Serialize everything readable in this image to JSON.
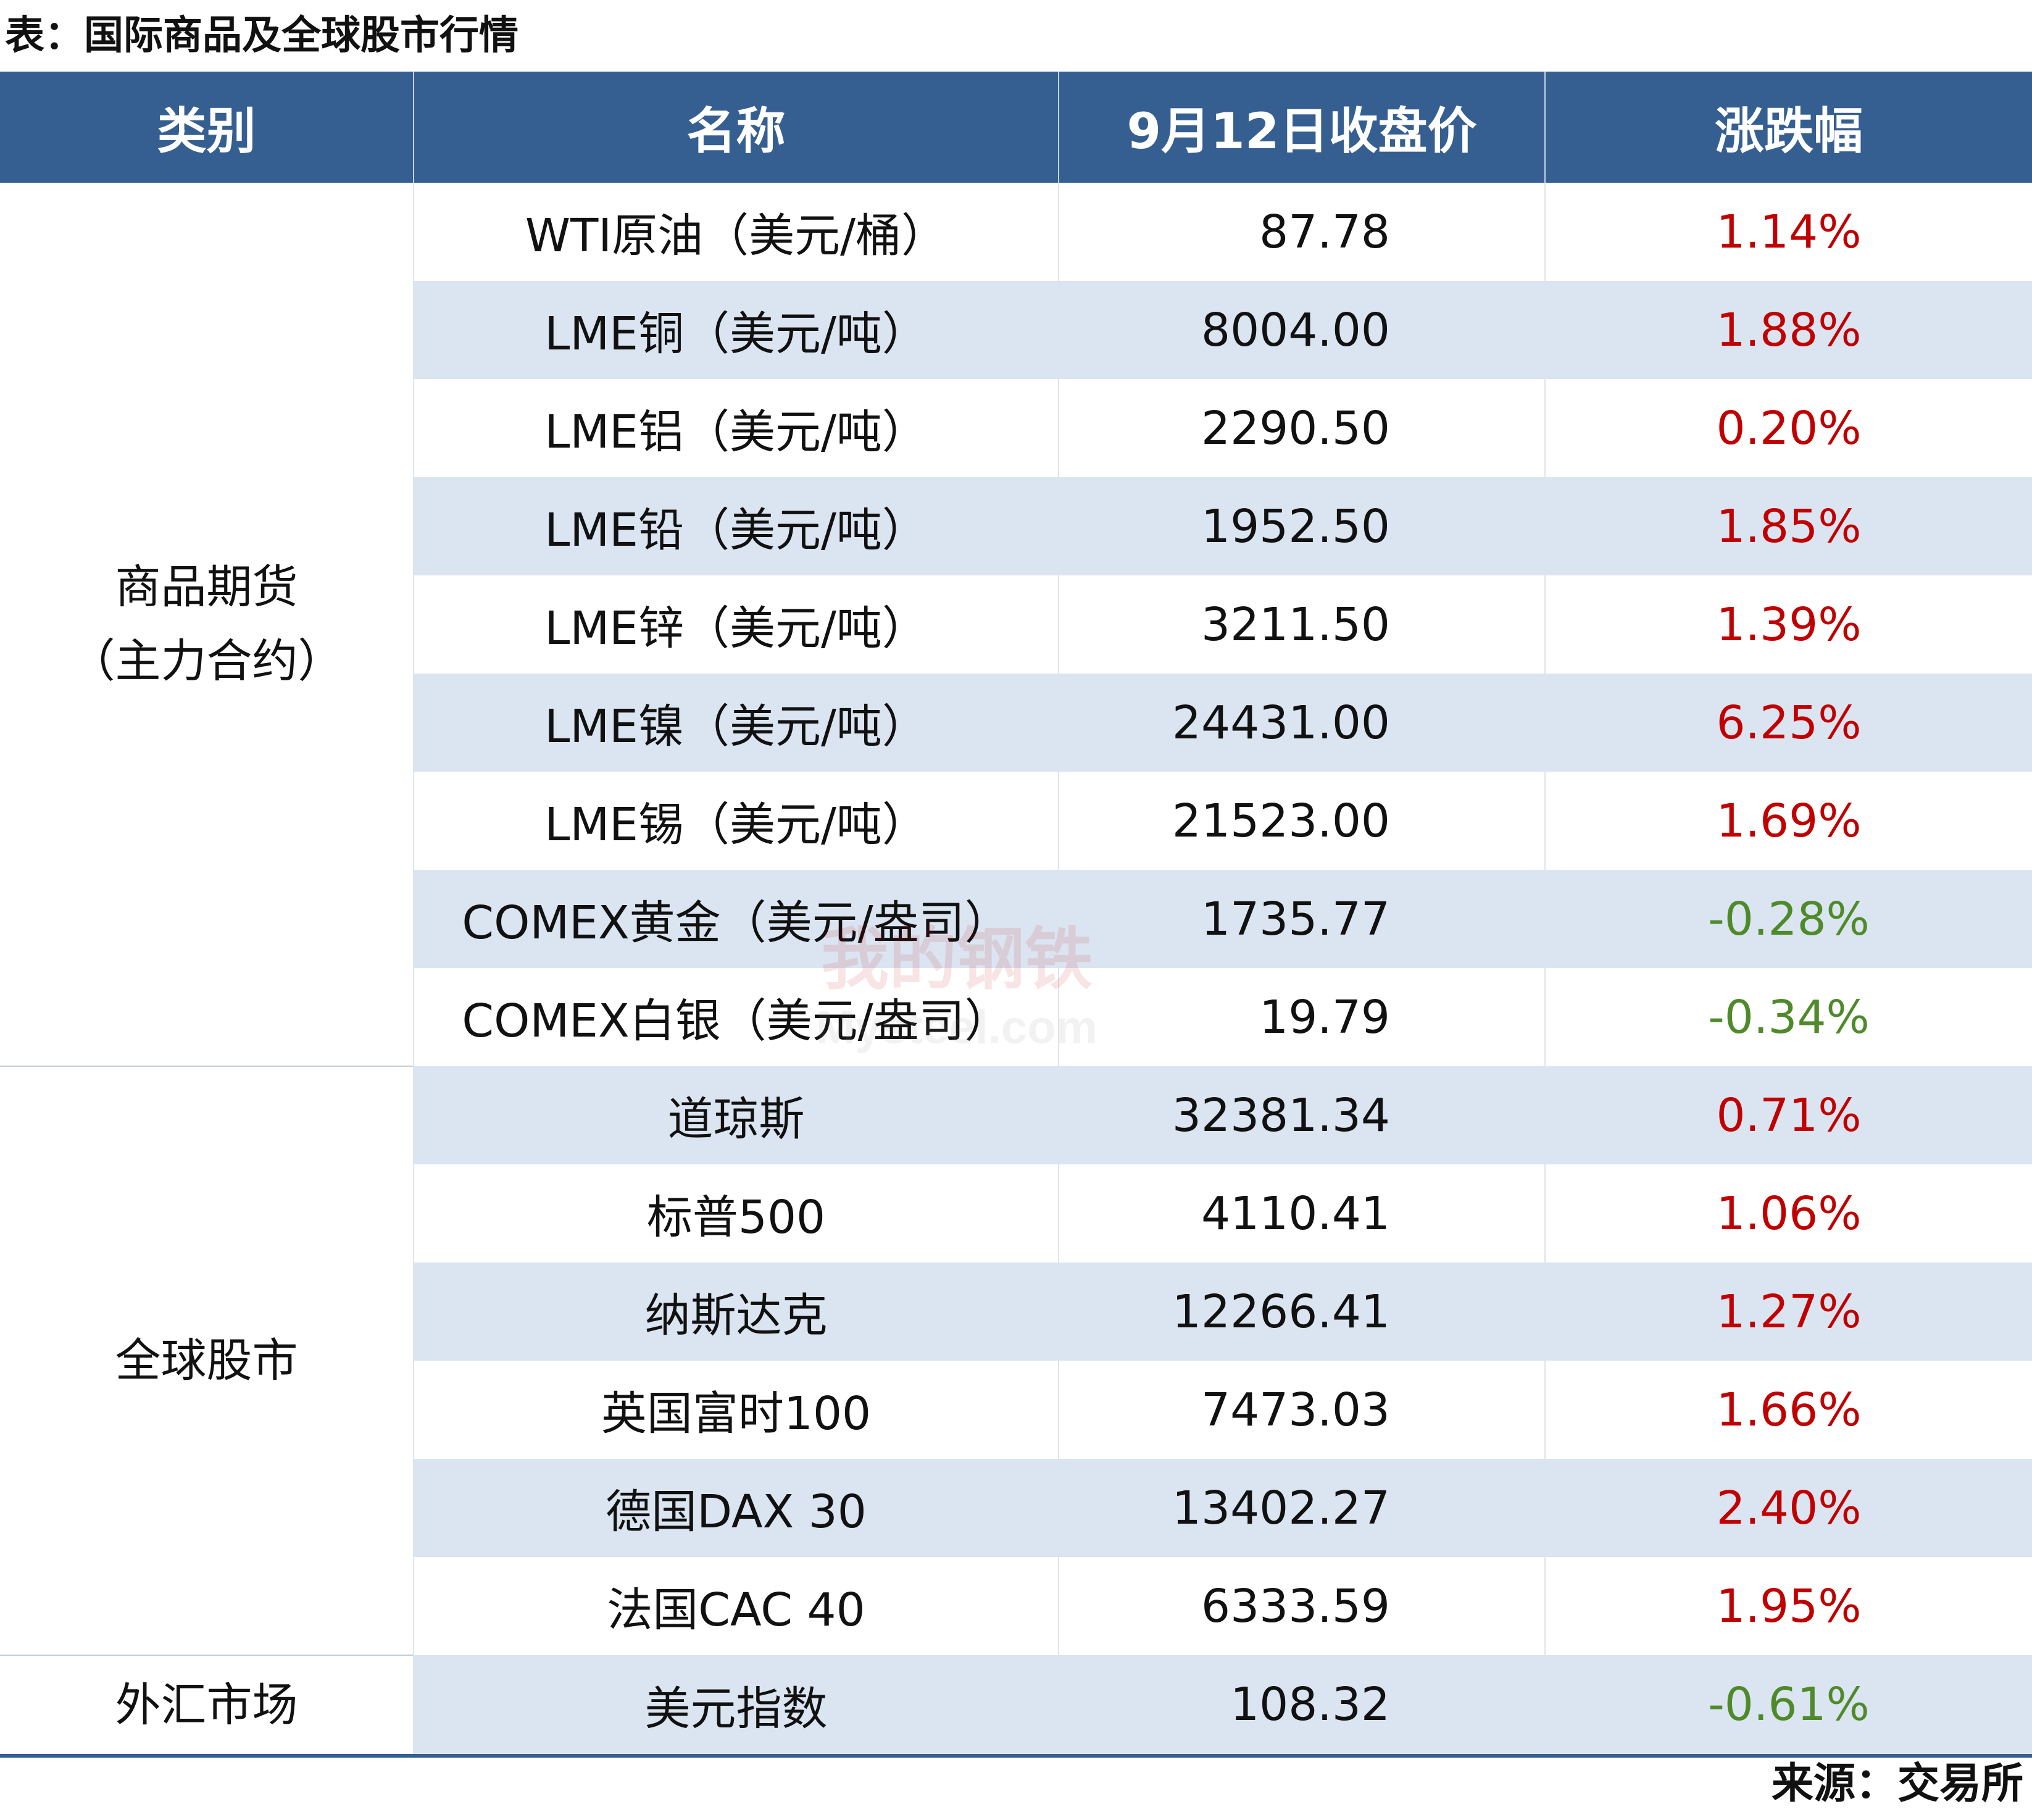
{
  "caption": "表：国际商品及全球股市行情",
  "headers": [
    "类别",
    "名称",
    "9月12日收盘价",
    "涨跌幅"
  ],
  "categories": {
    "commodities": [
      "商品期货",
      "（主力合约）"
    ],
    "stocks": "全球股市",
    "fx": "外汇市场"
  },
  "rows": [
    {
      "name": "WTI原油（美元/桶）",
      "price": "87.78",
      "change": "1.14%",
      "direction": "up"
    },
    {
      "name": "LME铜（美元/吨）",
      "price": "8004.00",
      "change": "1.88%",
      "direction": "up"
    },
    {
      "name": "LME铝（美元/吨）",
      "price": "2290.50",
      "change": "0.20%",
      "direction": "up"
    },
    {
      "name": "LME铅（美元/吨）",
      "price": "1952.50",
      "change": "1.85%",
      "direction": "up"
    },
    {
      "name": "LME锌（美元/吨）",
      "price": "3211.50",
      "change": "1.39%",
      "direction": "up"
    },
    {
      "name": "LME镍（美元/吨）",
      "price": "24431.00",
      "change": "6.25%",
      "direction": "up"
    },
    {
      "name": "LME锡（美元/吨）",
      "price": "21523.00",
      "change": "1.69%",
      "direction": "up"
    },
    {
      "name": "COMEX黄金（美元/盎司）",
      "price": "1735.77",
      "change": "-0.28%",
      "direction": "down"
    },
    {
      "name": "COMEX白银（美元/盎司）",
      "price": "19.79",
      "change": "-0.34%",
      "direction": "down"
    },
    {
      "name": "道琼斯",
      "price": "32381.34",
      "change": "0.71%",
      "direction": "up"
    },
    {
      "name": "标普500",
      "price": "4110.41",
      "change": "1.06%",
      "direction": "up"
    },
    {
      "name": "纳斯达克",
      "price": "12266.41",
      "change": "1.27%",
      "direction": "up"
    },
    {
      "name": "英国富时100",
      "price": "7473.03",
      "change": "1.66%",
      "direction": "up"
    },
    {
      "name": "德国DAX 30",
      "price": "13402.27",
      "change": "2.40%",
      "direction": "up"
    },
    {
      "name": "法国CAC 40",
      "price": "6333.59",
      "change": "1.95%",
      "direction": "up"
    },
    {
      "name": "美元指数",
      "price": "108.32",
      "change": "-0.61%",
      "direction": "down"
    }
  ],
  "watermark": {
    "logo": "我的钢铁",
    "domain": "Mysteel.com"
  },
  "source": "来源：交易所",
  "colors": {
    "header_bg": "#365f91",
    "row_shade": "#dbe5f1",
    "up": "#c00000",
    "down": "#4f8a2a"
  }
}
